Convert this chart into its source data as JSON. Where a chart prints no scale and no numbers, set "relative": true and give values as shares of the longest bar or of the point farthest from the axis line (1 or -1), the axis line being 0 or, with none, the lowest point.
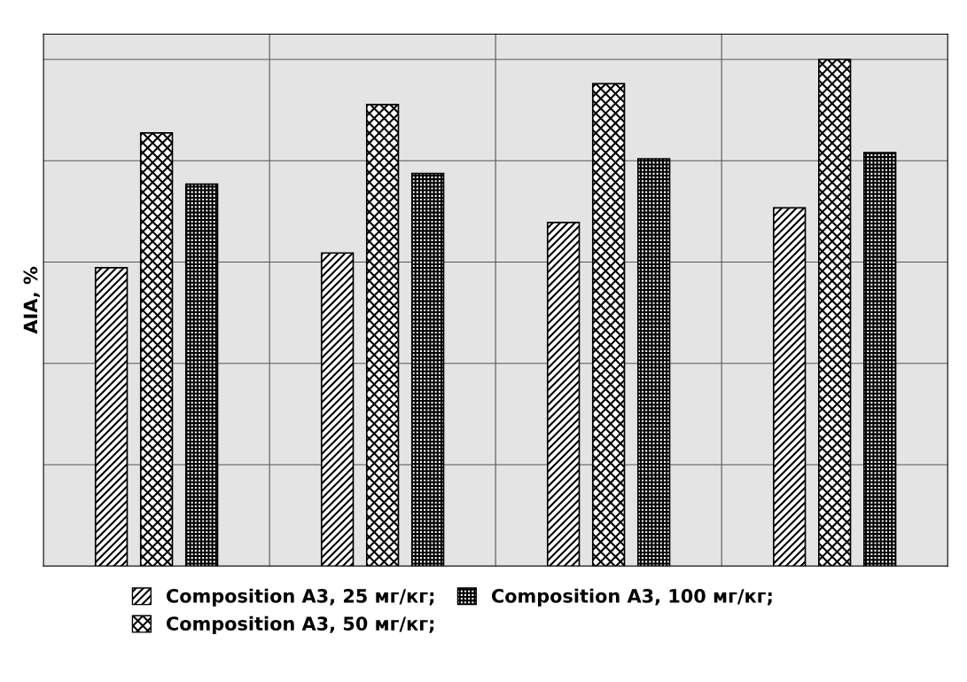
{
  "chart_data": {
    "type": "bar",
    "ylabel": "AIA, %",
    "relative": true,
    "categories": [
      null,
      null,
      null,
      null
    ],
    "series": [
      {
        "name": "Composition A3, 25 мг/кг;",
        "color": "#000000",
        "values": [
          0.589,
          0.618,
          0.678,
          0.707
        ]
      },
      {
        "name": "Composition A3, 50 мг/кг;",
        "color": "#000000",
        "values": [
          0.855,
          0.911,
          0.952,
          1
        ]
      },
      {
        "name": "Composition A3, 100 мг/кг;",
        "color": "#000000",
        "values": [
          0.754,
          0.775,
          0.804,
          0.816
        ]
      }
    ],
    "grid": true,
    "legend": "bottom"
  }
}
